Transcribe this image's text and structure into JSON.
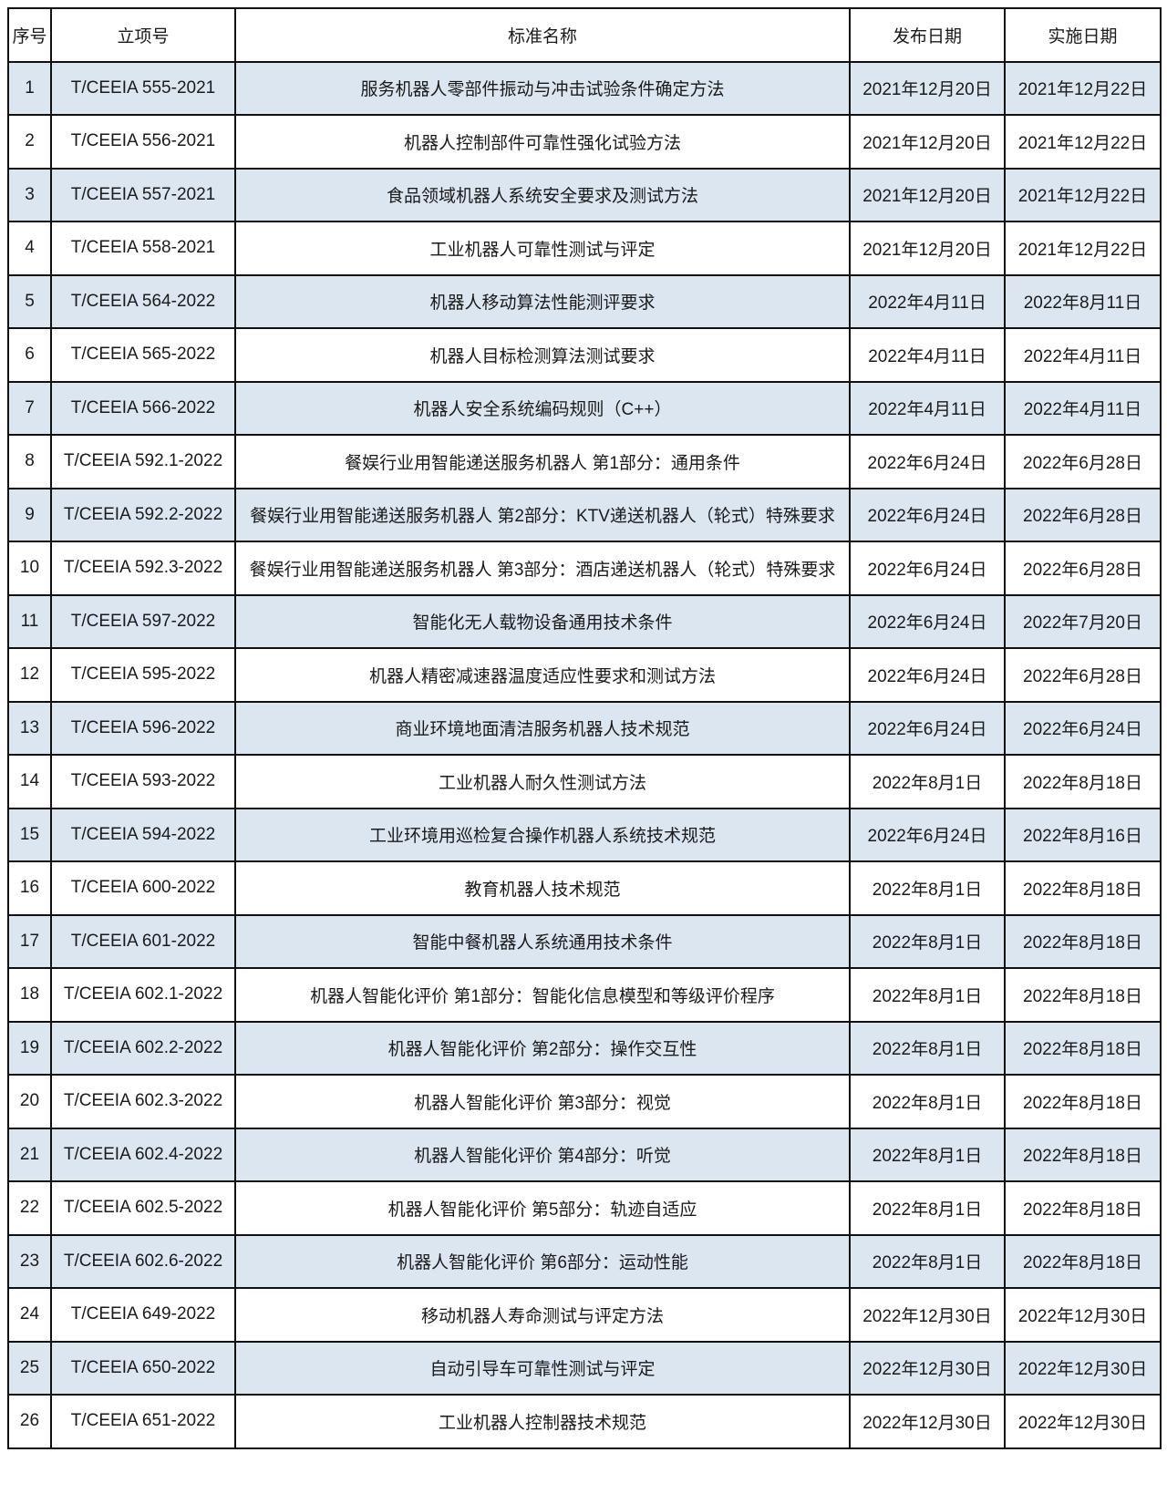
{
  "colors": {
    "alt_row": "#dce6f1",
    "border": "#111111"
  },
  "headers": [
    "序号",
    "立项号",
    "标准名称",
    "发布日期",
    "实施日期"
  ],
  "rows": [
    [
      "1",
      "T/CEEIA 555-2021",
      "服务机器人零部件振动与冲击试验条件确定方法",
      "2021年12月20日",
      "2021年12月22日"
    ],
    [
      "2",
      "T/CEEIA 556-2021",
      "机器人控制部件可靠性强化试验方法",
      "2021年12月20日",
      "2021年12月22日"
    ],
    [
      "3",
      "T/CEEIA 557-2021",
      "食品领域机器人系统安全要求及测试方法",
      "2021年12月20日",
      "2021年12月22日"
    ],
    [
      "4",
      "T/CEEIA 558-2021",
      "工业机器人可靠性测试与评定",
      "2021年12月20日",
      "2021年12月22日"
    ],
    [
      "5",
      "T/CEEIA 564-2022",
      "机器人移动算法性能测评要求",
      "2022年4月11日",
      "2022年8月11日"
    ],
    [
      "6",
      "T/CEEIA 565-2022",
      "机器人目标检测算法测试要求",
      "2022年4月11日",
      "2022年4月11日"
    ],
    [
      "7",
      "T/CEEIA 566-2022",
      "机器人安全系统编码规则（C++）",
      "2022年4月11日",
      "2022年4月11日"
    ],
    [
      "8",
      "T/CEEIA 592.1-2022",
      "餐娱行业用智能递送服务机器人 第1部分：通用条件",
      "2022年6月24日",
      "2022年6月28日"
    ],
    [
      "9",
      "T/CEEIA 592.2-2022",
      "餐娱行业用智能递送服务机器人 第2部分：KTV递送机器人（轮式）特殊要求",
      "2022年6月24日",
      "2022年6月28日"
    ],
    [
      "10",
      "T/CEEIA 592.3-2022",
      "餐娱行业用智能递送服务机器人 第3部分：酒店递送机器人（轮式）特殊要求",
      "2022年6月24日",
      "2022年6月28日"
    ],
    [
      "11",
      "T/CEEIA 597-2022",
      "智能化无人载物设备通用技术条件",
      "2022年6月24日",
      "2022年7月20日"
    ],
    [
      "12",
      "T/CEEIA 595-2022",
      "机器人精密减速器温度适应性要求和测试方法",
      "2022年6月24日",
      "2022年6月28日"
    ],
    [
      "13",
      "T/CEEIA 596-2022",
      "商业环境地面清洁服务机器人技术规范",
      "2022年6月24日",
      "2022年6月24日"
    ],
    [
      "14",
      "T/CEEIA 593-2022",
      "工业机器人耐久性测试方法",
      "2022年8月1日",
      "2022年8月18日"
    ],
    [
      "15",
      "T/CEEIA 594-2022",
      "工业环境用巡检复合操作机器人系统技术规范",
      "2022年6月24日",
      "2022年8月16日"
    ],
    [
      "16",
      "T/CEEIA 600-2022",
      "教育机器人技术规范",
      "2022年8月1日",
      "2022年8月18日"
    ],
    [
      "17",
      "T/CEEIA 601-2022",
      "智能中餐机器人系统通用技术条件",
      "2022年8月1日",
      "2022年8月18日"
    ],
    [
      "18",
      "T/CEEIA 602.1-2022",
      "机器人智能化评价 第1部分：智能化信息模型和等级评价程序",
      "2022年8月1日",
      "2022年8月18日"
    ],
    [
      "19",
      "T/CEEIA 602.2-2022",
      "机器人智能化评价 第2部分：操作交互性",
      "2022年8月1日",
      "2022年8月18日"
    ],
    [
      "20",
      "T/CEEIA 602.3-2022",
      "机器人智能化评价 第3部分：视觉",
      "2022年8月1日",
      "2022年8月18日"
    ],
    [
      "21",
      "T/CEEIA 602.4-2022",
      "机器人智能化评价 第4部分：听觉",
      "2022年8月1日",
      "2022年8月18日"
    ],
    [
      "22",
      "T/CEEIA 602.5-2022",
      "机器人智能化评价 第5部分：轨迹自适应",
      "2022年8月1日",
      "2022年8月18日"
    ],
    [
      "23",
      "T/CEEIA 602.6-2022",
      "机器人智能化评价 第6部分：运动性能",
      "2022年8月1日",
      "2022年8月18日"
    ],
    [
      "24",
      "T/CEEIA 649-2022",
      "移动机器人寿命测试与评定方法",
      "2022年12月30日",
      "2022年12月30日"
    ],
    [
      "25",
      "T/CEEIA 650-2022",
      "自动引导车可靠性测试与评定",
      "2022年12月30日",
      "2022年12月30日"
    ],
    [
      "26",
      "T/CEEIA 651-2022",
      "工业机器人控制器技术规范",
      "2022年12月30日",
      "2022年12月30日"
    ]
  ]
}
